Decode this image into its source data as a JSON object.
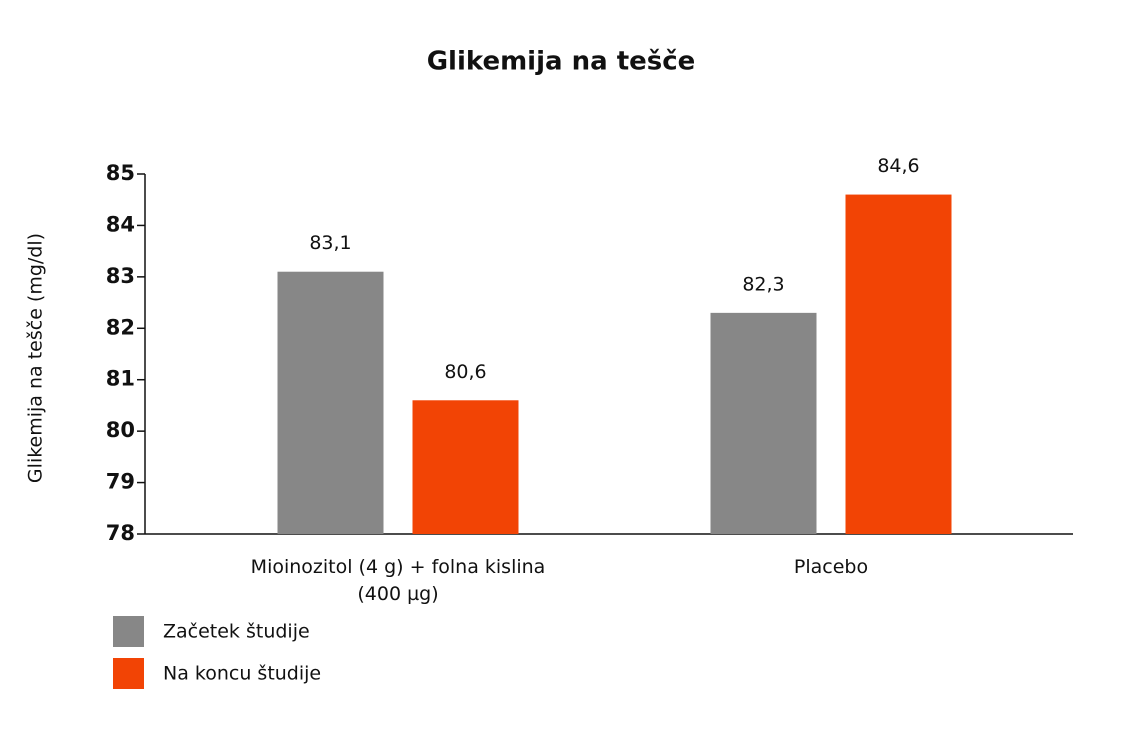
{
  "chart_data": {
    "type": "bar",
    "title": "Glikemija na tešče",
    "y_label": "Glikemija na tešče (mg/dl)",
    "categories": [
      "Mioinozitol (4 g) + folna kislina (400 µg)",
      "Placebo"
    ],
    "series": [
      {
        "name": "Začetek študije",
        "color": "#878787",
        "values": [
          83.1,
          82.3
        ],
        "value_labels": [
          "83,1",
          "82,3"
        ]
      },
      {
        "name": "Na koncu študije",
        "color": "#f24405",
        "values": [
          80.6,
          84.6
        ],
        "value_labels": [
          "80,6",
          "84,6"
        ]
      }
    ],
    "ylim": [
      78,
      85
    ],
    "yticks": [
      78,
      79,
      80,
      81,
      82,
      83,
      84,
      85
    ],
    "grid": false
  }
}
